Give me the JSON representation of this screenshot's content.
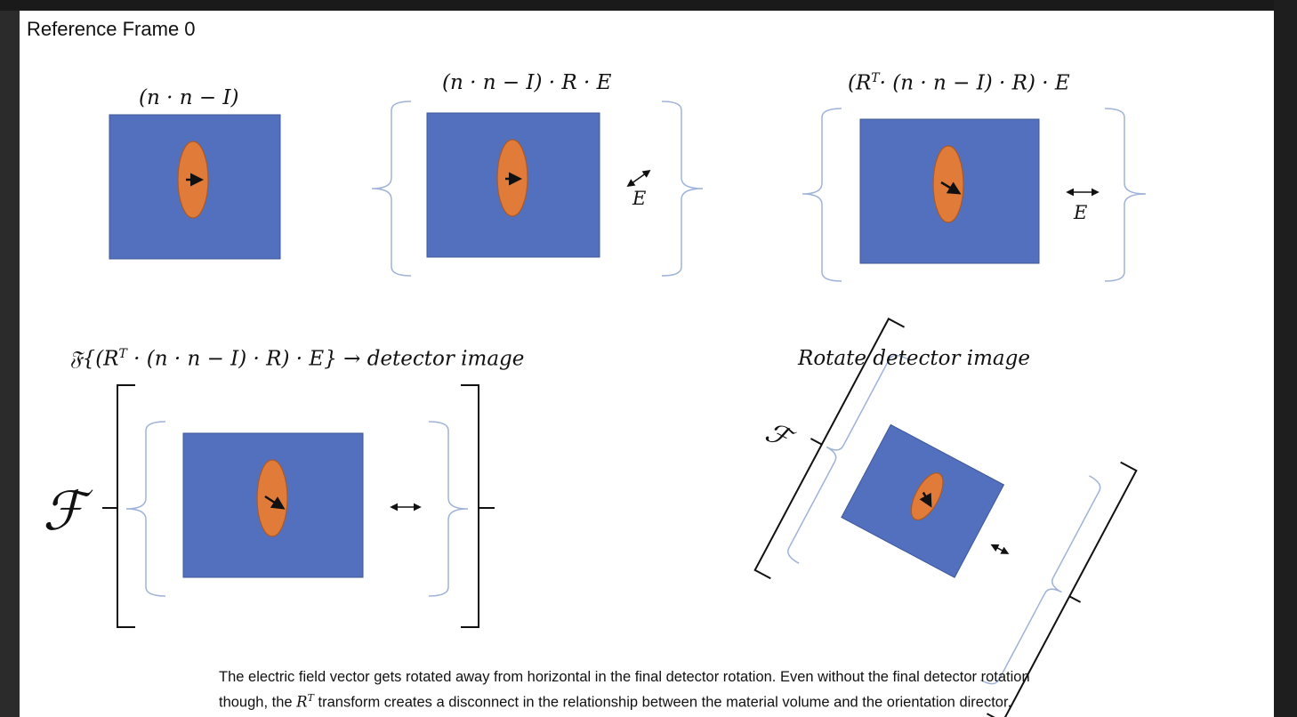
{
  "title": "Reference Frame 0",
  "equations": {
    "panel1": "(n · n − I)",
    "panel2": "(n · n − I) · R · E",
    "panel3_prefix": "(R",
    "panel3_sup": "T",
    "panel3_suffix": "· (n · n − I) · R) · E",
    "panel4_prefix": "𝔉{(R",
    "panel4_sup": "T",
    "panel4_suffix": " · (n · n − I) · R) · E} → detector image",
    "panel5": "Rotate detector image"
  },
  "labels": {
    "e_label_2": "E",
    "e_label_3": "E",
    "fourier_big": "ℱ",
    "fourier_small": "ℱ"
  },
  "caption": {
    "line1": "The electric field vector gets rotated away from horizontal in the final detector rotation. Even without the final detector rotation",
    "line2_prefix": "though, the ",
    "line2_R": "R",
    "line2_sup": "T",
    "line2_suffix": " transform creates a disconnect in the relationship between the material volume and the orientation director."
  },
  "colors": {
    "rect_fill": "#5270BE",
    "rect_stroke": "#3d5797",
    "ellipse_fill": "#E07B39",
    "ellipse_stroke": "#a85a2a",
    "bracket_blue": "#9fb3d8",
    "bracket_black": "#111111"
  }
}
